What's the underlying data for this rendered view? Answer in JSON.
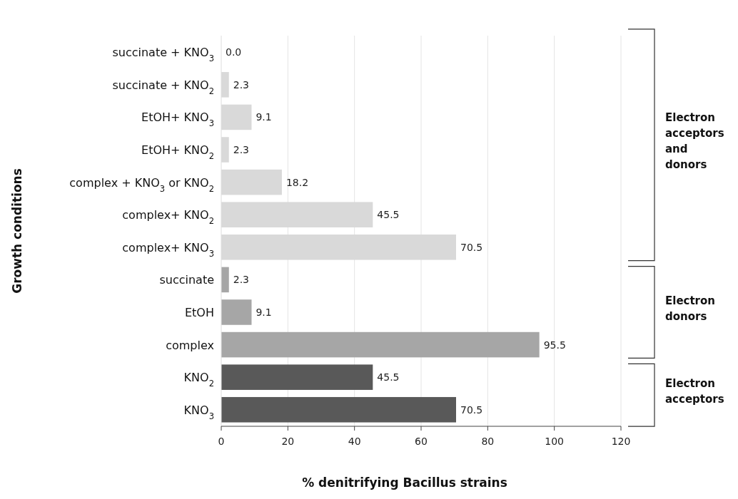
{
  "chart_data": {
    "type": "bar",
    "orientation": "horizontal",
    "xlabel": "% denitrifying Bacillus strains",
    "ylabel": "Growth conditions",
    "categories": [
      "succinate + KNO$_{3}$",
      "succinate + KNO$_{2}$",
      "EtOH+ KNO$_{3}$",
      "EtOH+ KNO$_{2}$",
      "complex + KNO$_{3}$ or KNO$_{2}$",
      "complex+ KNO$_{2}$",
      "complex+ KNO$_{3}$",
      "succinate",
      "EtOH",
      "complex",
      "KNO$_{2}$",
      "KNO$_{3}$"
    ],
    "values": [
      0.0,
      2.3,
      9.1,
      2.3,
      18.2,
      45.5,
      70.5,
      2.3,
      9.1,
      95.5,
      45.5,
      70.5
    ],
    "value_labels": [
      "0.0",
      "2.3",
      "9.1",
      "2.3",
      "18.2",
      "45.5",
      "70.5",
      "2.3",
      "9.1",
      "95.5",
      "45.5",
      "70.5"
    ],
    "colors": [
      "#d9d9d9",
      "#d9d9d9",
      "#d9d9d9",
      "#d9d9d9",
      "#d9d9d9",
      "#d9d9d9",
      "#d9d9d9",
      "#a6a6a6",
      "#a6a6a6",
      "#a6a6a6",
      "#595959",
      "#595959"
    ],
    "xlim": [
      0,
      120
    ],
    "xticks": [
      0,
      20,
      40,
      60,
      80,
      100,
      120
    ],
    "grid": "x",
    "annotations": [
      "Electron acceptors and donors",
      "Electron donors",
      "Electron acceptors"
    ]
  }
}
